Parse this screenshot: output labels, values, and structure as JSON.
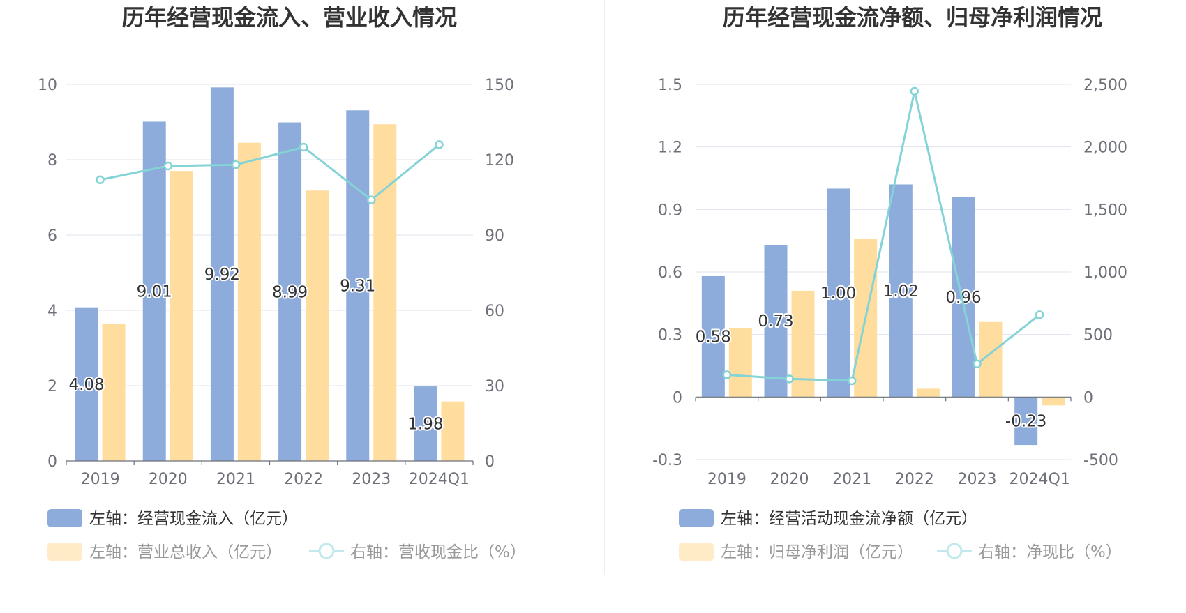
{
  "chart_data": [
    {
      "type": "bar",
      "title": "历年经营现金流入、营业收入情况",
      "categories": [
        "2019",
        "2020",
        "2021",
        "2022",
        "2023",
        "2024Q1"
      ],
      "left_axis": {
        "ticks": [
          "0",
          "2",
          "4",
          "6",
          "8",
          "10"
        ],
        "range": [
          0,
          10
        ]
      },
      "right_axis": {
        "ticks": [
          "0",
          "30",
          "60",
          "90",
          "120",
          "150"
        ],
        "range": [
          0,
          150
        ]
      },
      "series": [
        {
          "name": "左轴：经营现金流入（亿元）",
          "type": "bar",
          "axis": "left",
          "color": "#8eacdb",
          "values": [
            4.08,
            9.01,
            9.92,
            8.99,
            9.31,
            1.98
          ],
          "labels": [
            "4.08",
            "9.01",
            "9.92",
            "8.99",
            "9.31",
            "1.98"
          ]
        },
        {
          "name": "左轴：营业总收入（亿元）",
          "type": "bar",
          "axis": "left",
          "color": "#ffdd9f",
          "values": [
            3.65,
            7.7,
            8.45,
            7.18,
            8.94,
            1.58
          ]
        },
        {
          "name": "右轴：营收现金比（%）",
          "type": "line",
          "axis": "right",
          "color": "#84d3d6",
          "values": [
            112,
            117.5,
            118,
            125,
            104,
            126
          ]
        }
      ],
      "legend_placement": "bottom-left"
    },
    {
      "type": "bar",
      "title": "历年经营现金流净额、归母净利润情况",
      "categories": [
        "2019",
        "2020",
        "2021",
        "2022",
        "2023",
        "2024Q1"
      ],
      "left_axis": {
        "ticks": [
          "-0.3",
          "0",
          "0.3",
          "0.6",
          "0.9",
          "1.2",
          "1.5"
        ],
        "range": [
          -0.3,
          1.5
        ]
      },
      "right_axis": {
        "ticks": [
          "-500",
          "0",
          "500",
          "1,000",
          "1,500",
          "2,000",
          "2,500"
        ],
        "range": [
          -500,
          2500
        ]
      },
      "series": [
        {
          "name": "左轴：经营活动现金流净额（亿元）",
          "type": "bar",
          "axis": "left",
          "color": "#8eacdb",
          "values": [
            0.58,
            0.73,
            1.0,
            1.02,
            0.96,
            -0.23
          ],
          "labels": [
            "0.58",
            "0.73",
            "1.00",
            "1.02",
            "0.96",
            "-0.23"
          ]
        },
        {
          "name": "左轴：归母净利润（亿元）",
          "type": "bar",
          "axis": "left",
          "color": "#ffdd9f",
          "values": [
            0.33,
            0.51,
            0.76,
            0.04,
            0.36,
            -0.04
          ]
        },
        {
          "name": "右轴：净现比（%）",
          "type": "line",
          "axis": "right",
          "color": "#84d3d6",
          "values": [
            178,
            145,
            130,
            2445,
            265,
            658
          ]
        }
      ],
      "legend_placement": "bottom-left"
    }
  ]
}
